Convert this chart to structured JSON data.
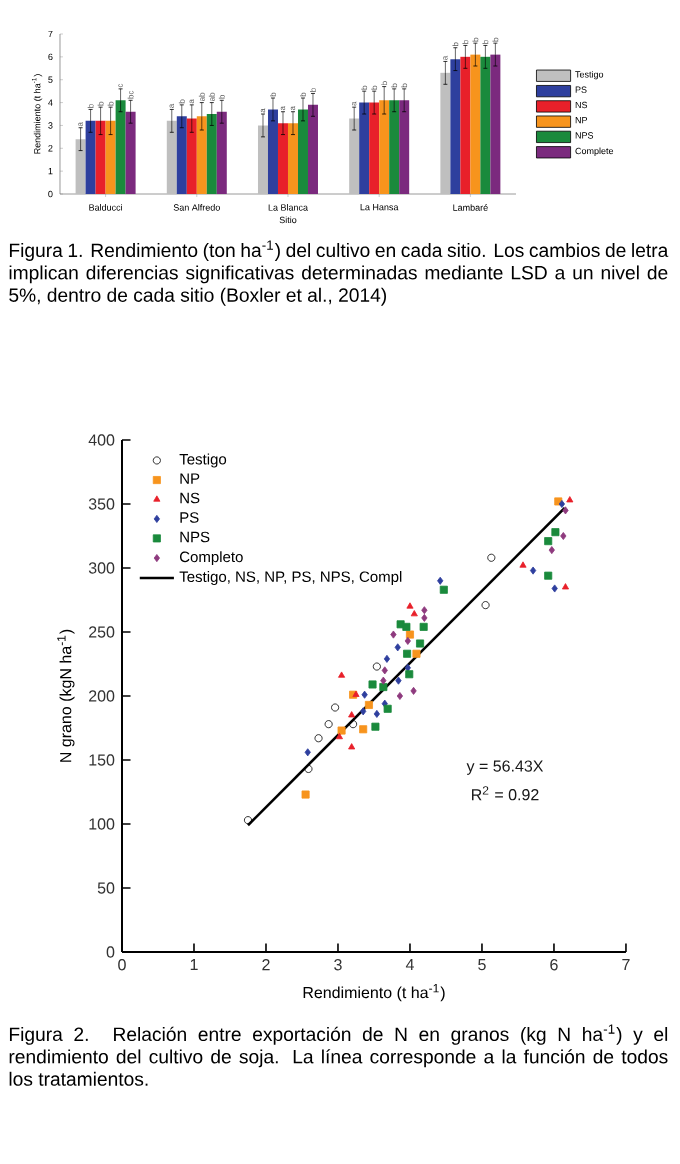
{
  "chart_data": [
    {
      "type": "bar",
      "categories": [
        "Balducci",
        "San Alfredo",
        "La Blanca",
        "La Hansa",
        "Lambaré"
      ],
      "xlabel": "Sitio",
      "ylabel": "Rendimiento (t ha$^{-1}$)",
      "ylim": [
        0,
        7
      ],
      "yticks": [
        0,
        1,
        2,
        3,
        4,
        5,
        6,
        7
      ],
      "legend": "right",
      "series": [
        {
          "name": "Testigo",
          "color": "#bfbfbf",
          "values": [
            2.4,
            3.2,
            3.0,
            3.3,
            5.3
          ],
          "errors": [
            0.5,
            0.5,
            0.5,
            0.5,
            0.5
          ],
          "value_labels": [
            "a",
            "a",
            "a",
            "a",
            "a"
          ]
        },
        {
          "name": "PS",
          "color": "#2e3f9e",
          "values": [
            3.2,
            3.4,
            3.7,
            4.0,
            5.9
          ],
          "errors": [
            0.5,
            0.5,
            0.5,
            0.5,
            0.5
          ],
          "value_labels": [
            "b",
            "b",
            "b",
            "b",
            "b"
          ]
        },
        {
          "name": "NS",
          "color": "#e8202a",
          "values": [
            3.2,
            3.3,
            3.1,
            4.0,
            6.0
          ],
          "errors": [
            0.6,
            0.6,
            0.5,
            0.5,
            0.5
          ],
          "value_labels": [
            "b",
            "a",
            "a",
            "b",
            "b"
          ]
        },
        {
          "name": "NP",
          "color": "#f7941d",
          "values": [
            3.2,
            3.4,
            3.1,
            4.1,
            6.1
          ],
          "errors": [
            0.6,
            0.6,
            0.5,
            0.6,
            0.5
          ],
          "value_labels": [
            "b",
            "ab",
            "a",
            "b",
            "b"
          ]
        },
        {
          "name": "NPS",
          "color": "#1a8a3c",
          "values": [
            4.1,
            3.5,
            3.7,
            4.1,
            6.0
          ],
          "errors": [
            0.5,
            0.5,
            0.5,
            0.5,
            0.5
          ],
          "value_labels": [
            "c",
            "ab",
            "b",
            "b",
            "b"
          ]
        },
        {
          "name": "Complete",
          "color": "#7b2a7e",
          "values": [
            3.6,
            3.6,
            3.9,
            4.1,
            6.1
          ],
          "errors": [
            0.5,
            0.5,
            0.5,
            0.5,
            0.5
          ],
          "value_labels": [
            "bc",
            "b",
            "b",
            "b",
            "b"
          ]
        }
      ],
      "annotations": [
        "Figura 1. Rendimiento (ton ha$^{-1}$) del cultivo en cada sitio. Los cambios de letra implican diferencias significativas determinadas mediante LSD a un nivel de 5%, dentro de cada sitio (Boxler et al., 2014)"
      ]
    },
    {
      "type": "scatter",
      "xlabel": "Rendimiento  (t ha$^{-1}$)",
      "ylabel": "N grano (kgN ha$^{-1}$)",
      "xlim": [
        0,
        7
      ],
      "xticks": [
        0,
        1,
        2,
        3,
        4,
        5,
        6,
        7
      ],
      "ylim": [
        0,
        400
      ],
      "yticks": [
        0,
        50,
        100,
        150,
        200,
        250,
        300,
        350,
        400
      ],
      "legend": "top left",
      "series": [
        {
          "name": "Testigo",
          "color": "#000000",
          "marker": "circle",
          "x": [
            1.75,
            2.59,
            2.73,
            2.87,
            2.96,
            3.21,
            3.54,
            5.05,
            5.13
          ],
          "values": [
            103,
            143,
            167,
            178,
            191,
            178,
            223,
            271,
            308
          ]
        },
        {
          "name": "NP",
          "color": "#f7941d",
          "marker": "square",
          "x": [
            6.06,
            4.0,
            4.09,
            3.21,
            3.43,
            3.05,
            3.35,
            2.55
          ],
          "values": [
            352,
            248,
            233,
            201,
            193,
            173,
            174,
            123
          ]
        },
        {
          "name": "NS",
          "color": "#e8202a",
          "marker": "triangle",
          "x": [
            6.22,
            5.57,
            6.16,
            4.0,
            4.06,
            3.25,
            3.05,
            3.19,
            3.02,
            3.19
          ],
          "values": [
            353,
            302,
            285,
            270,
            264,
            201,
            216,
            185,
            168,
            160
          ]
        },
        {
          "name": "PS",
          "color": "#2e3f9e",
          "marker": "diamond",
          "x": [
            6.11,
            5.71,
            6.01,
            4.42,
            3.83,
            3.68,
            3.97,
            3.84,
            3.37,
            3.65,
            3.35,
            3.54,
            2.58
          ],
          "values": [
            350,
            298,
            284,
            290,
            238,
            229,
            222,
            212,
            201,
            194,
            188,
            186,
            156
          ]
        },
        {
          "name": "NPS",
          "color": "#1a8a3c",
          "marker": "square",
          "x": [
            6.02,
            5.92,
            5.92,
            4.47,
            3.87,
            3.95,
            4.19,
            4.14,
            3.96,
            3.99,
            3.48,
            3.63,
            3.69,
            3.52
          ],
          "values": [
            328,
            321,
            294,
            283,
            256,
            254,
            254,
            241,
            233,
            217,
            209,
            207,
            190,
            176
          ]
        },
        {
          "name": "Completo",
          "color": "#8e3a7e",
          "marker": "diamond",
          "x": [
            6.16,
            6.13,
            5.97,
            4.2,
            4.2,
            3.77,
            3.97,
            4.05,
            3.86,
            3.65,
            3.63
          ],
          "values": [
            345,
            325,
            314,
            267,
            261,
            248,
            243,
            204,
            200,
            220,
            212
          ]
        },
        {
          "name": "Testigo, NS, NP, PS, NPS, Compl",
          "type": "line",
          "color": "#000000",
          "marker": "none",
          "x": [
            1.75,
            6.15
          ],
          "values": [
            99,
            347
          ]
        }
      ],
      "annotations": [
        "y = 56.43X",
        "R$^{2}$ = 0.92",
        "Figura 2. Relación entre exportación de N en granos (kg N ha$^{-1}$) y el rendimiento del cultivo de soja. La línea corresponde a la función de todos los tratamientos."
      ]
    }
  ]
}
